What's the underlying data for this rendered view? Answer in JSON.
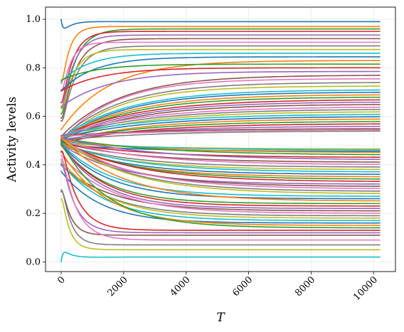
{
  "chart_data": {
    "type": "line",
    "title": "",
    "xlabel": "T",
    "ylabel": "Activity levels",
    "xlim": [
      -500,
      10700
    ],
    "ylim": [
      -0.04,
      1.05
    ],
    "grid": true,
    "x_ticks": [
      "0",
      "2000",
      "4000",
      "6000",
      "8000",
      "10000"
    ],
    "y_ticks": [
      "0.0",
      "0.2",
      "0.4",
      "0.6",
      "0.8",
      "1.0"
    ],
    "x_range": [
      0,
      10200
    ],
    "series_count": 80,
    "colors": [
      "#1f77b4",
      "#ff7f0e",
      "#2ca02c",
      "#d62728",
      "#9467bd",
      "#8c564b",
      "#e377c2",
      "#7f7f7f",
      "#bcbd22",
      "#17becf"
    ],
    "series_final_values": [
      0.99,
      0.97,
      0.96,
      0.95,
      0.935,
      0.92,
      0.905,
      0.89,
      0.875,
      0.86,
      0.845,
      0.83,
      0.815,
      0.8,
      0.785,
      0.77,
      0.755,
      0.74,
      0.725,
      0.71,
      0.7,
      0.69,
      0.68,
      0.67,
      0.66,
      0.65,
      0.64,
      0.63,
      0.62,
      0.61,
      0.6,
      0.59,
      0.58,
      0.57,
      0.56,
      0.55,
      0.545,
      0.54,
      0.465,
      0.46,
      0.455,
      0.45,
      0.44,
      0.43,
      0.42,
      0.41,
      0.4,
      0.39,
      0.38,
      0.37,
      0.36,
      0.35,
      0.34,
      0.33,
      0.32,
      0.31,
      0.3,
      0.29,
      0.28,
      0.27,
      0.26,
      0.25,
      0.24,
      0.23,
      0.22,
      0.21,
      0.2,
      0.19,
      0.18,
      0.17,
      0.16,
      0.15,
      0.14,
      0.13,
      0.12,
      0.11,
      0.09,
      0.07,
      0.05,
      0.02
    ]
  }
}
